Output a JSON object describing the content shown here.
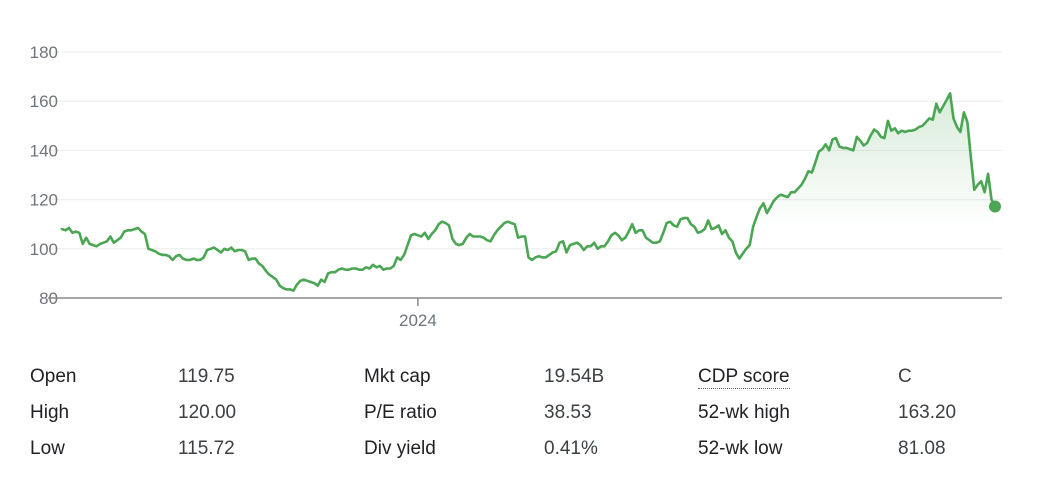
{
  "chart_data": {
    "type": "area",
    "title": "",
    "xlabel": "",
    "ylabel": "",
    "ylim": [
      80,
      180
    ],
    "yticks": [
      80,
      100,
      120,
      140,
      160,
      180
    ],
    "x_tick_labels": [
      {
        "label": "2024",
        "index": 103
      }
    ],
    "grid": true,
    "colors": {
      "line": "#4ba654",
      "fill": "#4ba654",
      "grid": "#ececec",
      "baseline": "#8a8a8a"
    },
    "series": [
      {
        "values": [
          108,
          107.5,
          108.5,
          106.5,
          107,
          106.5,
          102,
          104.5,
          102,
          101.5,
          101,
          102,
          102.5,
          103,
          105,
          102.5,
          103.5,
          104.5,
          107,
          107.5,
          107.5,
          108,
          108.5,
          107,
          106,
          100,
          99.5,
          99,
          98,
          97.5,
          97.5,
          97,
          95.5,
          97,
          97.5,
          96,
          95.5,
          95.5,
          96,
          95.5,
          95.5,
          96.5,
          99.5,
          100,
          100.5,
          99.5,
          98.5,
          100,
          99.5,
          100.5,
          99,
          99.5,
          99.5,
          99,
          95.5,
          96,
          96,
          94,
          93,
          91,
          89.5,
          88.5,
          87.5,
          85,
          84,
          83.5,
          83.5,
          83,
          85.5,
          87,
          87.5,
          87,
          86.5,
          86,
          85,
          87.5,
          86.5,
          90,
          90.5,
          90.5,
          91.5,
          92,
          91.5,
          91.5,
          92,
          92,
          91.5,
          91.5,
          92.5,
          92,
          93.5,
          92.5,
          93,
          91.5,
          92,
          92,
          93,
          96.5,
          95.5,
          97.5,
          101.5,
          105.5,
          106,
          105.5,
          105,
          106.5,
          104,
          106,
          107.5,
          110,
          111,
          110.5,
          109.5,
          104,
          102,
          101.5,
          102,
          104.5,
          106,
          105,
          105,
          105,
          104.5,
          103.5,
          103,
          105.5,
          107.5,
          109,
          110.5,
          111,
          110.5,
          110,
          104.5,
          105,
          105,
          96.5,
          95.5,
          96.5,
          97,
          96.5,
          96.5,
          97.5,
          98.5,
          99,
          102.5,
          103,
          98.5,
          101.5,
          102,
          102.5,
          101.5,
          99.5,
          101,
          101,
          102.5,
          100,
          101,
          101,
          103,
          105.5,
          106.5,
          105.5,
          103.5,
          104.5,
          107,
          110,
          106.5,
          107.5,
          107.5,
          104.5,
          103.5,
          102.5,
          102.5,
          103,
          106.5,
          110.5,
          111,
          109.5,
          109,
          112,
          112.5,
          112.5,
          110,
          109,
          106.5,
          107,
          108,
          111.5,
          108,
          108.5,
          109.5,
          106,
          107.5,
          104.5,
          103,
          98.5,
          96,
          98,
          100,
          101.5,
          109,
          113,
          116.5,
          118.5,
          114.5,
          117,
          119.5,
          121,
          122,
          121.5,
          121,
          123,
          123,
          124.5,
          126,
          128.5,
          131.5,
          131,
          135,
          139.5,
          140.5,
          142.5,
          140,
          144.5,
          145,
          141.5,
          141,
          141,
          140.5,
          140,
          145.5,
          144,
          142,
          143,
          146,
          148.5,
          147.5,
          145.5,
          145,
          152,
          148,
          149,
          147,
          148,
          147.5,
          148,
          148,
          148.5,
          149.5,
          150,
          151.5,
          153,
          152.5,
          159,
          155.5,
          158,
          160.5,
          163.2,
          153,
          149.5,
          147.5,
          155.5,
          151.5,
          137.5,
          124,
          126,
          127.5,
          123,
          130.5,
          120,
          117.2
        ]
      }
    ]
  },
  "stats": {
    "col1": [
      {
        "label": "Open",
        "value": "119.75"
      },
      {
        "label": "High",
        "value": "120.00"
      },
      {
        "label": "Low",
        "value": "115.72"
      }
    ],
    "col2": [
      {
        "label": "Mkt cap",
        "value": "19.54B"
      },
      {
        "label": "P/E ratio",
        "value": "38.53"
      },
      {
        "label": "Div yield",
        "value": "0.41%"
      }
    ],
    "col3": [
      {
        "label": "CDP score",
        "value": "C"
      },
      {
        "label": "52-wk high",
        "value": "163.20"
      },
      {
        "label": "52-wk low",
        "value": "81.08"
      }
    ]
  }
}
